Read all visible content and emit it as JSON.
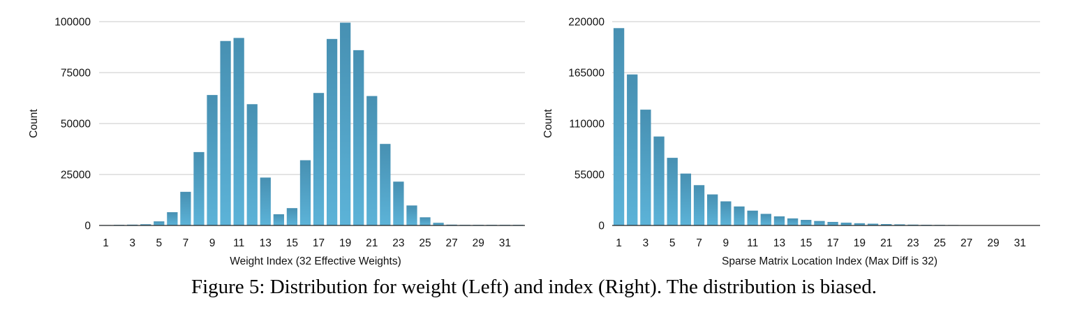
{
  "caption": "Figure 5: Distribution for weight (Left) and index (Right). The distribution is biased.",
  "colors": {
    "bar_top": "#4790b2",
    "bar_bottom": "#5cb3d8",
    "grid": "#c8c8c8",
    "axis": "#222222"
  },
  "chart_data": [
    {
      "type": "bar",
      "title": "",
      "xlabel": "Weight Index (32 Effective Weights)",
      "ylabel": "Count",
      "ylim": [
        0,
        100000
      ],
      "yticks": [
        0,
        25000,
        50000,
        75000,
        100000
      ],
      "categories": [
        1,
        2,
        3,
        4,
        5,
        6,
        7,
        8,
        9,
        10,
        11,
        12,
        13,
        14,
        15,
        16,
        17,
        18,
        19,
        20,
        21,
        22,
        23,
        24,
        25,
        26,
        27,
        28,
        29,
        30,
        31,
        32
      ],
      "xtick_labels": [
        "1",
        "3",
        "5",
        "7",
        "9",
        "11",
        "13",
        "15",
        "17",
        "19",
        "21",
        "23",
        "25",
        "27",
        "29",
        "31"
      ],
      "values": [
        200,
        300,
        400,
        600,
        2000,
        6500,
        16500,
        36000,
        64000,
        90500,
        92000,
        59500,
        23500,
        5500,
        8500,
        32000,
        65000,
        91500,
        99500,
        86000,
        63500,
        40000,
        21500,
        9800,
        4000,
        1300,
        400,
        300,
        300,
        300,
        300,
        300
      ],
      "grid": true
    },
    {
      "type": "bar",
      "title": "",
      "xlabel": "Sparse Matrix Location Index (Max Diff is 32)",
      "ylabel": "Count",
      "ylim": [
        0,
        220000
      ],
      "yticks": [
        0,
        55000,
        110000,
        165000,
        220000
      ],
      "categories": [
        1,
        2,
        3,
        4,
        5,
        6,
        7,
        8,
        9,
        10,
        11,
        12,
        13,
        14,
        15,
        16,
        17,
        18,
        19,
        20,
        21,
        22,
        23,
        24,
        25,
        26,
        27,
        28,
        29,
        30,
        31,
        32
      ],
      "xtick_labels": [
        "1",
        "3",
        "5",
        "7",
        "9",
        "11",
        "13",
        "15",
        "17",
        "19",
        "21",
        "23",
        "25",
        "27",
        "29",
        "31"
      ],
      "values": [
        213000,
        163000,
        125000,
        96000,
        73000,
        56000,
        43500,
        33500,
        26000,
        20500,
        16000,
        12500,
        9800,
        7600,
        6000,
        4800,
        3800,
        3000,
        2400,
        1900,
        1500,
        1200,
        900,
        700,
        600,
        500,
        400,
        350,
        300,
        250,
        200,
        200
      ],
      "grid": true
    }
  ]
}
